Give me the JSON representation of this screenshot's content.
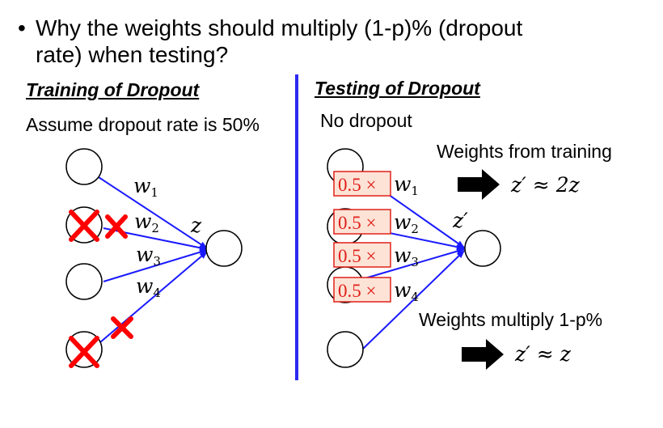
{
  "bullet": {
    "marker": "•",
    "text_line1": "Why the weights should multiply (1-p)% (dropout",
    "text_line2": "rate) when testing?"
  },
  "training": {
    "heading": "Training of Dropout",
    "assumption": "Assume dropout rate is 50%",
    "weights": [
      "w",
      "w",
      "w",
      "w"
    ],
    "subscripts": [
      "1",
      "2",
      "3",
      "4"
    ],
    "output_label": "z",
    "dropped_inputs": [
      2,
      4
    ]
  },
  "testing": {
    "heading": "Testing of Dropout",
    "note": "No dropout",
    "multiplier": "0.5 ×",
    "weights": [
      "w",
      "w",
      "w",
      "w"
    ],
    "subscripts": [
      "1",
      "2",
      "3",
      "4"
    ],
    "output_label": "z′",
    "caption_top": "Weights from training",
    "result_top": "z′ ≈ 2z",
    "caption_bottom": "Weights multiply 1-p%",
    "result_bottom": "z′ ≈ z"
  },
  "colors": {
    "edge": "#1a1aff",
    "divider": "#2a2af0",
    "cross": "#ff0000",
    "box_fill": "#fde3d6",
    "box_border": "#e0201a",
    "box_text": "#e0201a",
    "arrow": "#000000"
  }
}
